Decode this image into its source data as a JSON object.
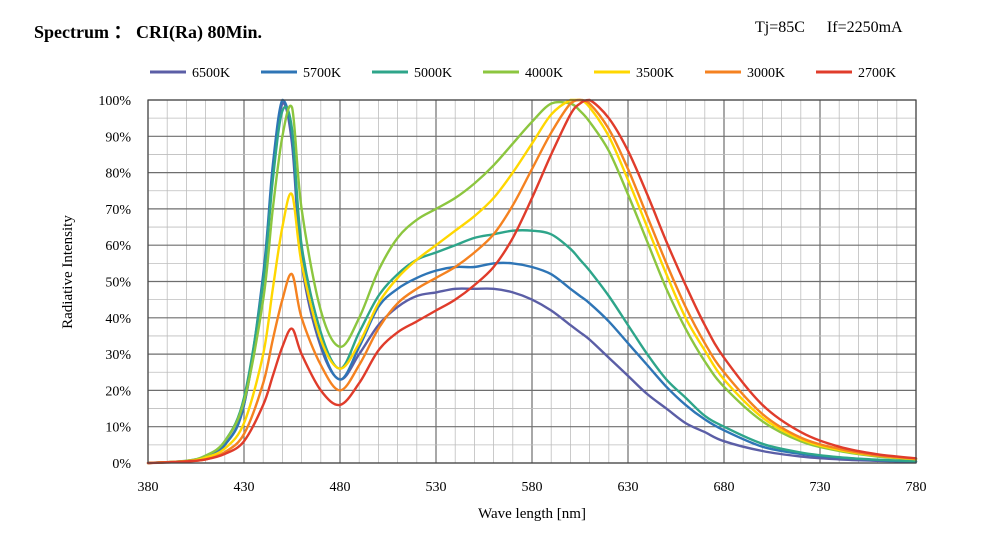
{
  "header": {
    "title": "Spectrum ：  CRI(Ra) 80Min.",
    "condition_tj": "Tj=85C",
    "condition_if": "If=2250mA"
  },
  "chart_data": {
    "type": "line",
    "title": "Spectrum ：  CRI(Ra) 80Min.",
    "xlabel": "Wave length [nm]",
    "ylabel": "Radiative Intensity",
    "xlim": [
      380,
      780
    ],
    "ylim": [
      0,
      100
    ],
    "x_ticks": [
      380,
      430,
      480,
      530,
      580,
      630,
      680,
      730,
      780
    ],
    "y_ticks": [
      "0%",
      "10%",
      "20%",
      "30%",
      "40%",
      "50%",
      "60%",
      "70%",
      "80%",
      "90%",
      "100%"
    ],
    "grid": true,
    "legend_position": "top",
    "x": [
      380,
      400,
      410,
      420,
      430,
      440,
      445,
      450,
      455,
      460,
      470,
      480,
      490,
      500,
      510,
      520,
      530,
      540,
      550,
      560,
      570,
      580,
      590,
      600,
      605,
      610,
      620,
      630,
      640,
      650,
      660,
      670,
      680,
      700,
      720,
      740,
      760,
      780
    ],
    "series": [
      {
        "name": "6500K",
        "color": "#5b5ea6",
        "values": [
          0,
          0.5,
          1.5,
          5,
          16,
          50,
          80,
          99,
          88,
          55,
          32,
          23,
          30,
          38,
          43,
          46,
          47,
          48,
          48,
          48,
          47,
          45,
          42,
          38,
          36,
          34,
          29,
          24,
          19,
          15,
          11,
          8.5,
          6,
          3.3,
          1.8,
          1,
          0.6,
          0.3
        ]
      },
      {
        "name": "5700K",
        "color": "#2e75b6",
        "values": [
          0,
          0.5,
          1.5,
          5,
          16,
          52,
          82,
          100,
          90,
          57,
          33,
          23,
          32,
          43,
          48,
          51,
          53,
          54,
          54,
          55,
          55,
          54,
          52,
          48,
          46,
          44,
          39,
          33,
          27,
          21,
          16,
          12,
          9,
          4.5,
          2.5,
          1.5,
          0.8,
          0.4
        ]
      },
      {
        "name": "5000K",
        "color": "#2ea58a",
        "values": [
          0,
          0.6,
          2,
          6,
          18,
          50,
          78,
          97,
          92,
          60,
          36,
          26,
          36,
          46,
          52,
          56,
          58,
          60,
          62,
          63,
          64,
          64,
          63,
          59,
          56,
          53,
          46,
          38,
          30,
          23,
          18,
          13,
          10,
          5.3,
          2.9,
          1.6,
          0.9,
          0.5
        ]
      },
      {
        "name": "4000K",
        "color": "#8cc63f",
        "values": [
          0,
          0.6,
          2,
          6,
          17,
          45,
          70,
          90,
          98,
          70,
          42,
          32,
          40,
          53,
          62,
          67,
          70,
          73,
          77,
          82,
          88,
          94,
          99,
          99,
          97,
          94,
          86,
          74,
          61,
          48,
          37,
          28,
          21,
          11.5,
          6,
          3.3,
          1.8,
          1
        ]
      },
      {
        "name": "3500K",
        "color": "#ffd700",
        "values": [
          0,
          0.5,
          1.5,
          4,
          11,
          30,
          48,
          65,
          74,
          55,
          34,
          26,
          33,
          44,
          51,
          56,
          60,
          64,
          68,
          73,
          80,
          88,
          96,
          100,
          100,
          98,
          90,
          78,
          65,
          52,
          40,
          31,
          23,
          12.5,
          6.5,
          3.6,
          2,
          1.1
        ]
      },
      {
        "name": "3000K",
        "color": "#f58220",
        "values": [
          0,
          0.5,
          1,
          3,
          8,
          22,
          34,
          45,
          52,
          40,
          27,
          20,
          27,
          37,
          44,
          48,
          51,
          54,
          58,
          63,
          71,
          81,
          91,
          99,
          100,
          99,
          92,
          81,
          68,
          55,
          43,
          33,
          25,
          13.5,
          7,
          3.9,
          2.1,
          1.2
        ]
      },
      {
        "name": "2700K",
        "color": "#e03c2b",
        "values": [
          0,
          0.4,
          1,
          2.5,
          6,
          16,
          24,
          32,
          37,
          30,
          20,
          16,
          22,
          31,
          36,
          39,
          42,
          45,
          49,
          54,
          62,
          73,
          85,
          96,
          99,
          100,
          95,
          86,
          74,
          61,
          49,
          38,
          29,
          16,
          8.5,
          4.5,
          2.4,
          1.3
        ]
      }
    ]
  }
}
